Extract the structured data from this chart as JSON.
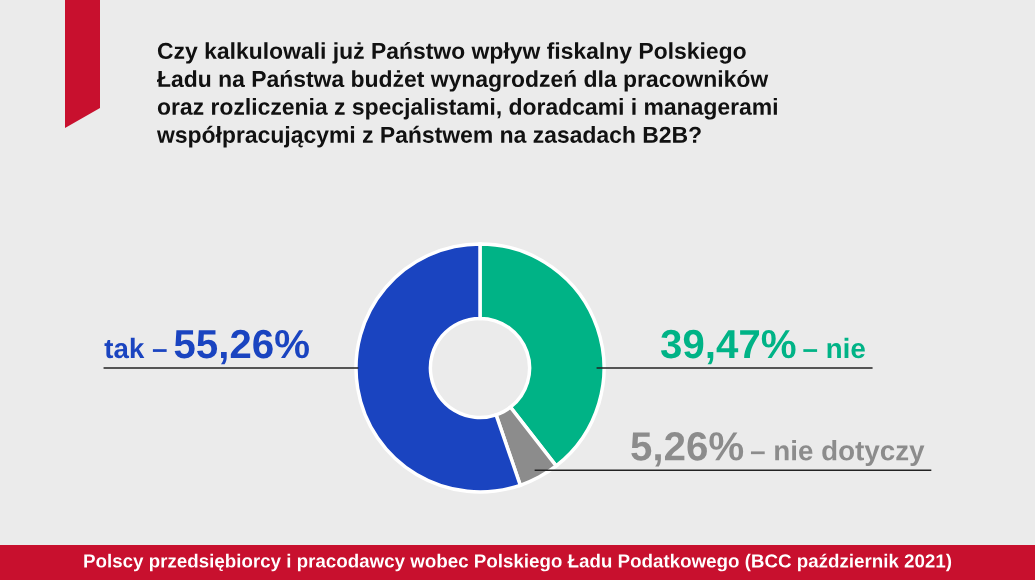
{
  "chart_data": {
    "type": "donut",
    "title": "Czy kalkulowali już Państwo wpływ fiskalny Polskiego\nŁadu na Państwa budżet wynagrodzeń dla pracowników\noraz rozliczenia z specjalistami, doradcami i managerami\nwspółpracującymi z Państwem na zasadach B2B?",
    "categories": [
      "– nie",
      "– nie dotyczy",
      "tak –"
    ],
    "values": [
      39.47,
      5.26,
      55.26
    ],
    "value_labels": [
      "39,47%",
      "5,26%",
      "55,26%"
    ],
    "colors": [
      "#00b386",
      "#8c8c8c",
      "#1a44c0"
    ],
    "annotations": [
      "Polscy przedsiębiorcy i pracodawcy wobec Polskiego Ładu Podatkowego (BCC październik 2021)"
    ]
  }
}
